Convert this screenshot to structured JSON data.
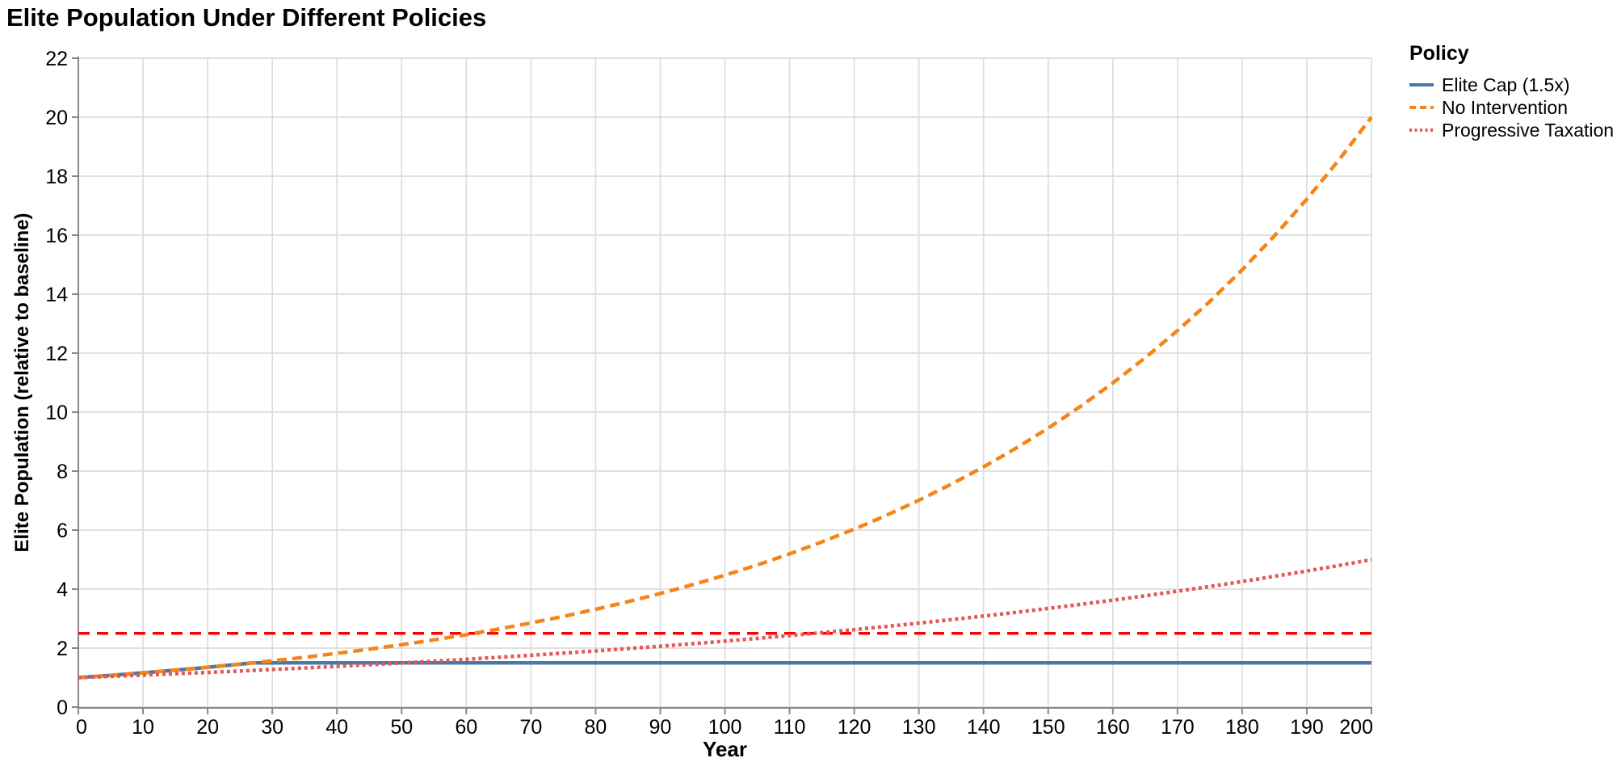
{
  "chart_data": {
    "type": "line",
    "title": "Elite Population Under Different Policies",
    "xlabel": "Year",
    "ylabel": "Elite Population (relative to baseline)",
    "xlim": [
      0,
      200
    ],
    "ylim": [
      0,
      22
    ],
    "x_ticks": [
      0,
      10,
      20,
      30,
      40,
      50,
      60,
      70,
      80,
      90,
      100,
      110,
      120,
      130,
      140,
      150,
      160,
      170,
      180,
      190,
      200
    ],
    "y_ticks": [
      0,
      2,
      4,
      6,
      8,
      10,
      12,
      14,
      16,
      18,
      20,
      22
    ],
    "grid": true,
    "legend_title": "Policy",
    "legend_position": "right",
    "series": [
      {
        "name": "Elite Cap (1.5x)",
        "color": "#4c78a8",
        "style": "solid",
        "x": [
          0,
          5,
          10,
          15,
          20,
          25,
          27,
          30,
          40,
          60,
          80,
          100,
          120,
          140,
          160,
          180,
          200
        ],
        "y": [
          1.0,
          1.078,
          1.162,
          1.252,
          1.349,
          1.454,
          1.5,
          1.5,
          1.5,
          1.5,
          1.5,
          1.5,
          1.5,
          1.5,
          1.5,
          1.5,
          1.5
        ]
      },
      {
        "name": "No Intervention",
        "color": "#f58518",
        "style": "dashed",
        "x": [
          0,
          5,
          10,
          15,
          20,
          25,
          30,
          35,
          40,
          45,
          50,
          55,
          60,
          65,
          70,
          75,
          80,
          85,
          90,
          95,
          100,
          105,
          110,
          115,
          120,
          125,
          130,
          135,
          140,
          145,
          150,
          155,
          160,
          165,
          170,
          175,
          180,
          185,
          190,
          195,
          200
        ],
        "y": [
          1.0,
          1.078,
          1.162,
          1.252,
          1.349,
          1.454,
          1.567,
          1.689,
          1.821,
          1.962,
          2.115,
          2.279,
          2.456,
          2.647,
          2.853,
          3.075,
          3.314,
          3.572,
          3.85,
          4.149,
          4.472,
          4.82,
          5.195,
          5.599,
          6.034,
          6.504,
          7.01,
          7.555,
          8.142,
          8.776,
          9.458,
          10.194,
          10.986,
          11.841,
          12.762,
          13.754,
          14.824,
          15.977,
          17.219,
          18.558,
          20.0
        ]
      },
      {
        "name": "Progressive Taxation",
        "color": "#e45756",
        "style": "dotted",
        "x": [
          0,
          5,
          10,
          15,
          20,
          25,
          30,
          35,
          40,
          45,
          50,
          55,
          60,
          65,
          70,
          75,
          80,
          85,
          90,
          95,
          100,
          105,
          110,
          115,
          120,
          125,
          130,
          135,
          140,
          145,
          150,
          155,
          160,
          165,
          170,
          175,
          180,
          185,
          190,
          195,
          200
        ],
        "y": [
          1.0,
          1.041,
          1.084,
          1.128,
          1.175,
          1.223,
          1.273,
          1.325,
          1.38,
          1.436,
          1.495,
          1.557,
          1.621,
          1.688,
          1.757,
          1.829,
          1.904,
          1.983,
          2.064,
          2.149,
          2.236,
          2.328,
          2.424,
          2.523,
          2.627,
          2.735,
          2.847,
          2.964,
          3.085,
          3.212,
          3.344,
          3.481,
          3.624,
          3.773,
          3.928,
          4.089,
          4.257,
          4.432,
          4.613,
          4.802,
          5.0
        ]
      }
    ],
    "threshold_line": {
      "value": 2.5,
      "color": "#ff0000",
      "style": "dashed"
    },
    "colors": {
      "gridline": "#dddddd",
      "axis_domain": "#888888",
      "tick": "#888888",
      "text": "#000000",
      "background": "#ffffff"
    }
  }
}
